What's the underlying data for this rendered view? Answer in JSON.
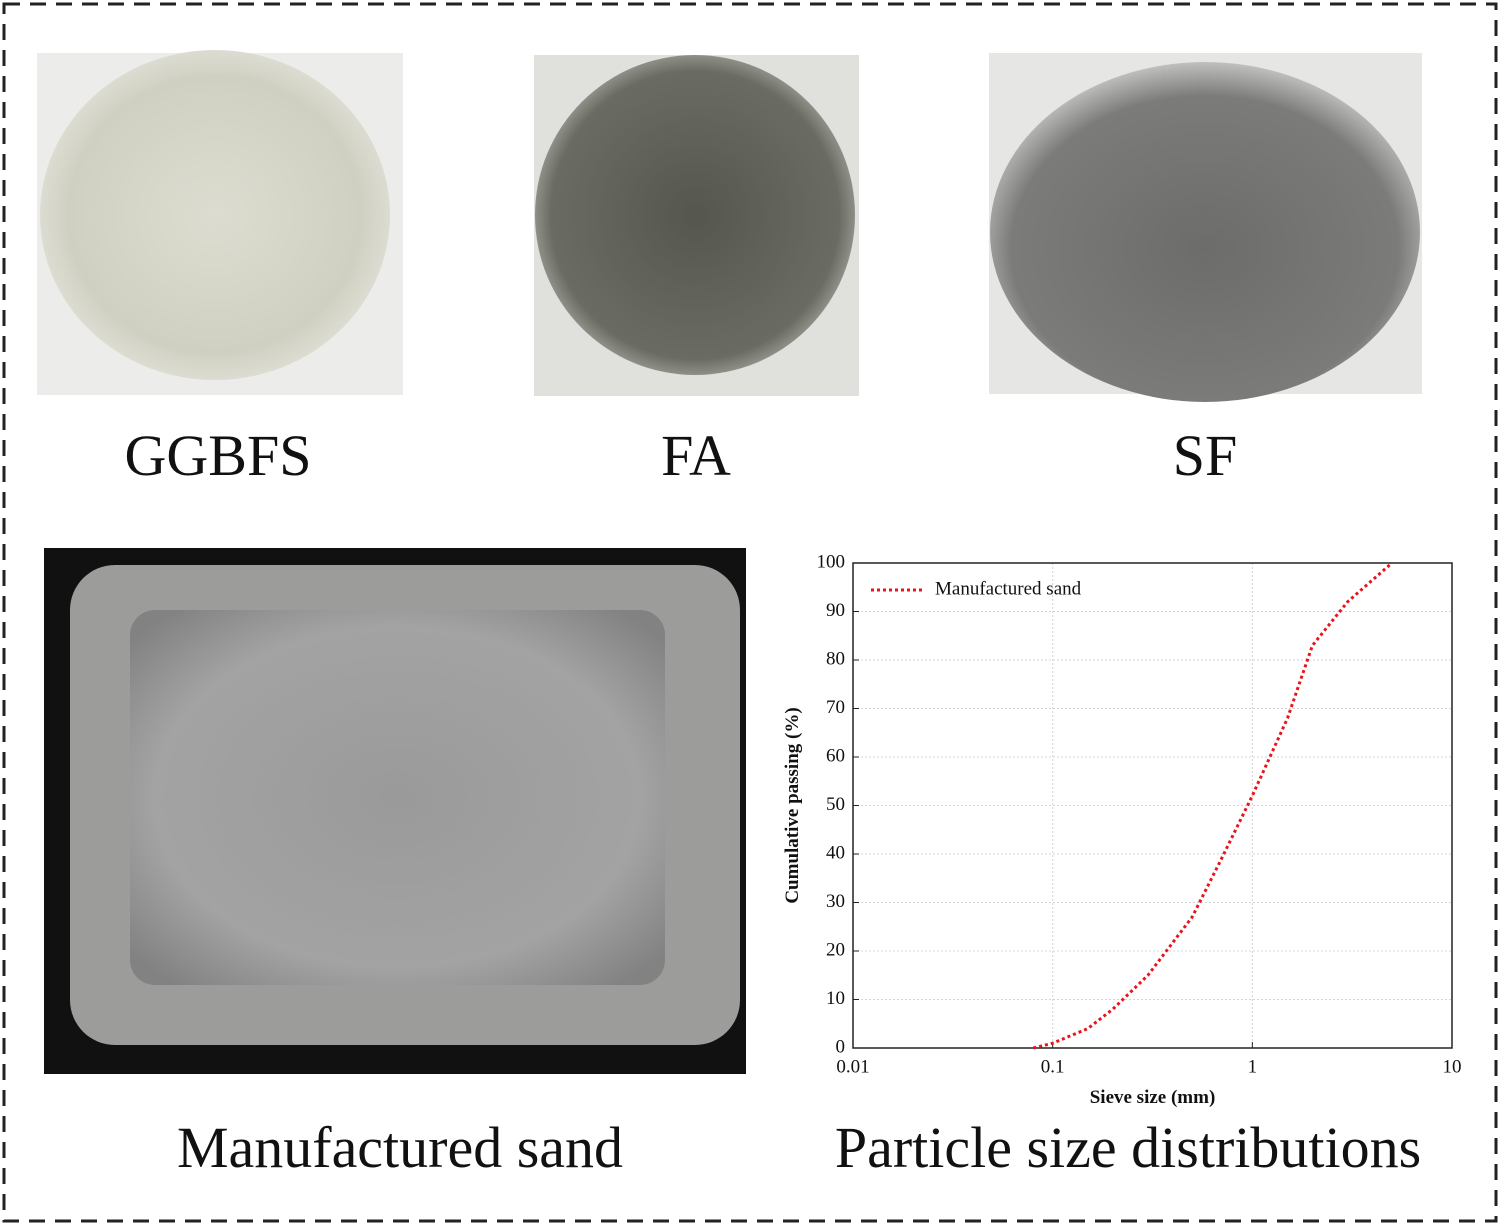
{
  "photos": [
    {
      "caption": "GGBFS"
    },
    {
      "caption": "FA"
    },
    {
      "caption": "SF"
    },
    {
      "caption": "Manufactured sand"
    }
  ],
  "chart_caption": "Particle size distributions",
  "chart_data": {
    "type": "line",
    "xlabel": "Sieve size (mm)",
    "ylabel": "Cumulative passing (%)",
    "x": [
      0.08,
      0.1,
      0.15,
      0.2,
      0.3,
      0.5,
      0.7,
      1.0,
      1.5,
      2,
      3,
      5
    ],
    "series": [
      {
        "name": "Manufactured sand",
        "color": "#e8141b",
        "values": [
          0,
          1,
          4,
          8,
          15,
          27,
          39,
          52,
          68,
          83,
          92,
          100
        ]
      }
    ],
    "xscale": "log",
    "xlim": [
      0.01,
      10
    ],
    "xticks": [
      0.01,
      0.1,
      1,
      10
    ],
    "ylim": [
      0,
      100
    ],
    "yticks": [
      0,
      10,
      20,
      30,
      40,
      50,
      60,
      70,
      80,
      90,
      100
    ],
    "grid": true,
    "legend": "upper left"
  }
}
